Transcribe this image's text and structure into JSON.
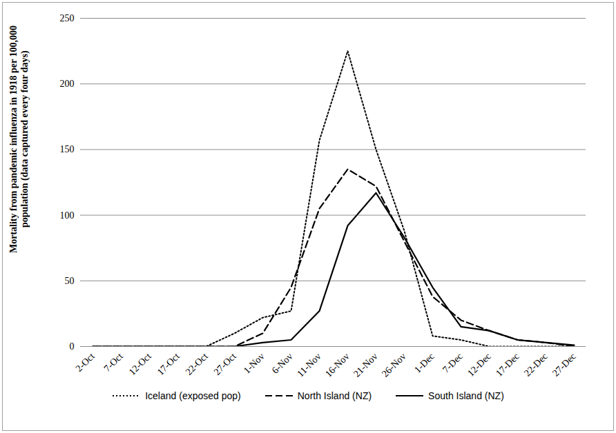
{
  "chart_data": {
    "type": "line",
    "y_label": "Mortality from pandemic influenza in 1918  per 100,000 population (data captured every four days)",
    "categories": [
      "2-Oct",
      "7-Oct",
      "12-Oct",
      "17-Oct",
      "22-Oct",
      "27-Oct",
      "1-Nov",
      "6-Nov",
      "11-Nov",
      "16-Nov",
      "21-Nov",
      "26-Nov",
      "1-Dec",
      "7-Dec",
      "12-Dec",
      "17-Dec",
      "22-Dec",
      "27-Dec"
    ],
    "series": [
      {
        "name": "Iceland (exposed pop)",
        "color": "#000000",
        "line_style": "dotted",
        "values": [
          0,
          0,
          0,
          0,
          0,
          10,
          22,
          27,
          157,
          225,
          150,
          88,
          8,
          5,
          0,
          0,
          0,
          0
        ]
      },
      {
        "name": "North Island (NZ)",
        "color": "#000000",
        "line_style": "dashed",
        "values": [
          0,
          0,
          0,
          0,
          0,
          0,
          10,
          45,
          105,
          135,
          122,
          80,
          38,
          20,
          12,
          5,
          3,
          0
        ]
      },
      {
        "name": "South Island (NZ)",
        "color": "#000000",
        "line_style": "solid",
        "values": [
          0,
          0,
          0,
          0,
          0,
          0,
          3,
          5,
          27,
          92,
          117,
          83,
          45,
          15,
          12,
          5,
          3,
          1
        ]
      }
    ],
    "ylim": [
      0,
      250
    ],
    "yticks": [
      0,
      50,
      100,
      150,
      200,
      250
    ],
    "grid": true,
    "legend": "bottom"
  }
}
